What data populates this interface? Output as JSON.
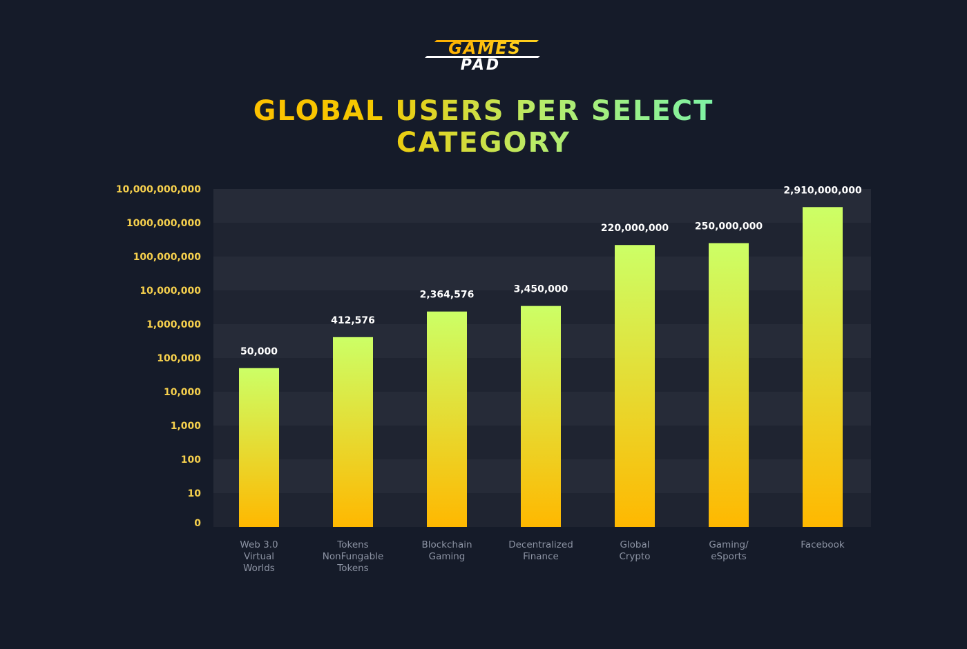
{
  "logo": {
    "line1": "GAMES",
    "line2": "PAD",
    "color": "#f5b800"
  },
  "title": "GLOBAL USERS PER SELECT CATEGORY",
  "colors": {
    "background": "#151b29",
    "band_light": "#262b38",
    "band_dark": "#1f2431",
    "bar_top": "#ccff66",
    "bar_bottom": "#ffb800",
    "tick_label": "#f6d04d",
    "data_label": "#ffffff",
    "category_label": "#8c93a3"
  },
  "chart_data": {
    "type": "bar",
    "scale": "log",
    "categories": [
      [
        "Web 3.0",
        "Virtual",
        "Worlds"
      ],
      [
        "Tokens",
        "NonFungable",
        "Tokens"
      ],
      [
        "Blockchain",
        "Gaming"
      ],
      [
        "Decentralized",
        "Finance"
      ],
      [
        "Global",
        "Crypto"
      ],
      [
        "Gaming/",
        "eSports"
      ],
      [
        "Facebook"
      ]
    ],
    "values": [
      50000,
      412576,
      2364576,
      3450000,
      220000000,
      250000000,
      2910000000
    ],
    "value_labels": [
      "50,000",
      "412,576",
      "2,364,576",
      "3,450,000",
      "220,000,000",
      "250,000,000",
      "2,910,000,000"
    ],
    "y_ticks": [
      {
        "value": 0,
        "label": "0"
      },
      {
        "value": 10,
        "label": "10"
      },
      {
        "value": 100,
        "label": "100"
      },
      {
        "value": 1000,
        "label": "1,000"
      },
      {
        "value": 10000,
        "label": "10,000"
      },
      {
        "value": 100000,
        "label": "100,000"
      },
      {
        "value": 1000000,
        "label": "1,000,000"
      },
      {
        "value": 10000000,
        "label": "10,000,000"
      },
      {
        "value": 100000000,
        "label": "100,000,000"
      },
      {
        "value": 1000000000,
        "label": "1000,000,000"
      },
      {
        "value": 10000000000,
        "label": "10,000,000,000"
      }
    ],
    "ylim": [
      0,
      10000000000
    ],
    "grid": "alternating bands",
    "legend": "none"
  }
}
